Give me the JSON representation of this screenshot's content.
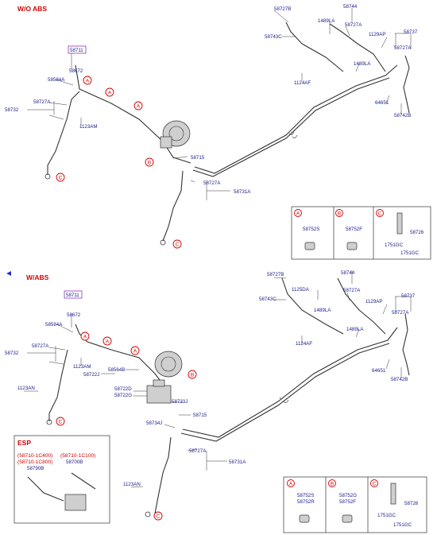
{
  "sections": {
    "wo_abs_title": "W/O ABS",
    "w_abs_title": "W/ABS",
    "esp_title": "ESP"
  },
  "callouts": {
    "a": "A",
    "b": "B",
    "c": "C"
  },
  "top_labels": {
    "p58711": "58711",
    "p58672": "58672",
    "p58584A": "58584A",
    "p58727A_l": "58727A",
    "p58732": "58732",
    "p1123AM": "1123AM",
    "p58715": "58715",
    "p58727A_m": "58727A",
    "p58731A": "58731A",
    "p58727B": "58727B",
    "p58743C": "58743C",
    "p1489LA": "1489LA",
    "p58744": "58744",
    "p58727A_r": "58727A",
    "p1129AP": "1129AP",
    "p58737": "58737",
    "p58727A_rr": "58727A",
    "p1489LA_b": "1489LA",
    "p1124AF": "1124AF",
    "p64651": "64651",
    "p58742B": "58742B"
  },
  "top_detail": {
    "a_part": "58752S",
    "b_part": "58752F",
    "c_p1": "58726",
    "c_p2": "1751GC",
    "c_p3": "1751GC"
  },
  "bottom_labels": {
    "p58711": "58711",
    "p58672": "58672",
    "p58584A": "58584A",
    "p58727A_l": "58727A",
    "p58732": "58732",
    "p1123AM": "1123AM",
    "p58564B": "58564B",
    "p58722J": "58722J",
    "p58722D": "58722D",
    "p58722G": "58722G",
    "p1123AN": "1123AN",
    "p58733J": "58733J",
    "p58715": "58715",
    "p58734J": "58734J",
    "p58727A_m": "58727A",
    "p58731A": "58731A",
    "p1123AN_b": "1123AN",
    "p58727B": "58727B",
    "p1125DA": "1125DA",
    "p58744": "58744",
    "p58743C": "58743C",
    "p58727A_r": "58727A",
    "p1489LA": "1489LA",
    "p1129AP": "1129AP",
    "p58737": "58737",
    "p58727A_rr": "58727A",
    "p1489LA_b": "1489LA",
    "p1124AF": "1124AF",
    "p64651": "64651",
    "p58742B": "58742B"
  },
  "bottom_detail": {
    "a_p1": "58752S",
    "a_p2": "58752R",
    "b_p1": "58752G",
    "b_p2": "58752F",
    "c_p1": "58726",
    "c_p2": "1751GC",
    "c_p3": "1751GC"
  },
  "esp": {
    "code1": "(58710-1C400)",
    "code2": "(58710-1C800)",
    "code3": "(58710-1C100)",
    "part1": "58790B",
    "part2": "58700B"
  }
}
